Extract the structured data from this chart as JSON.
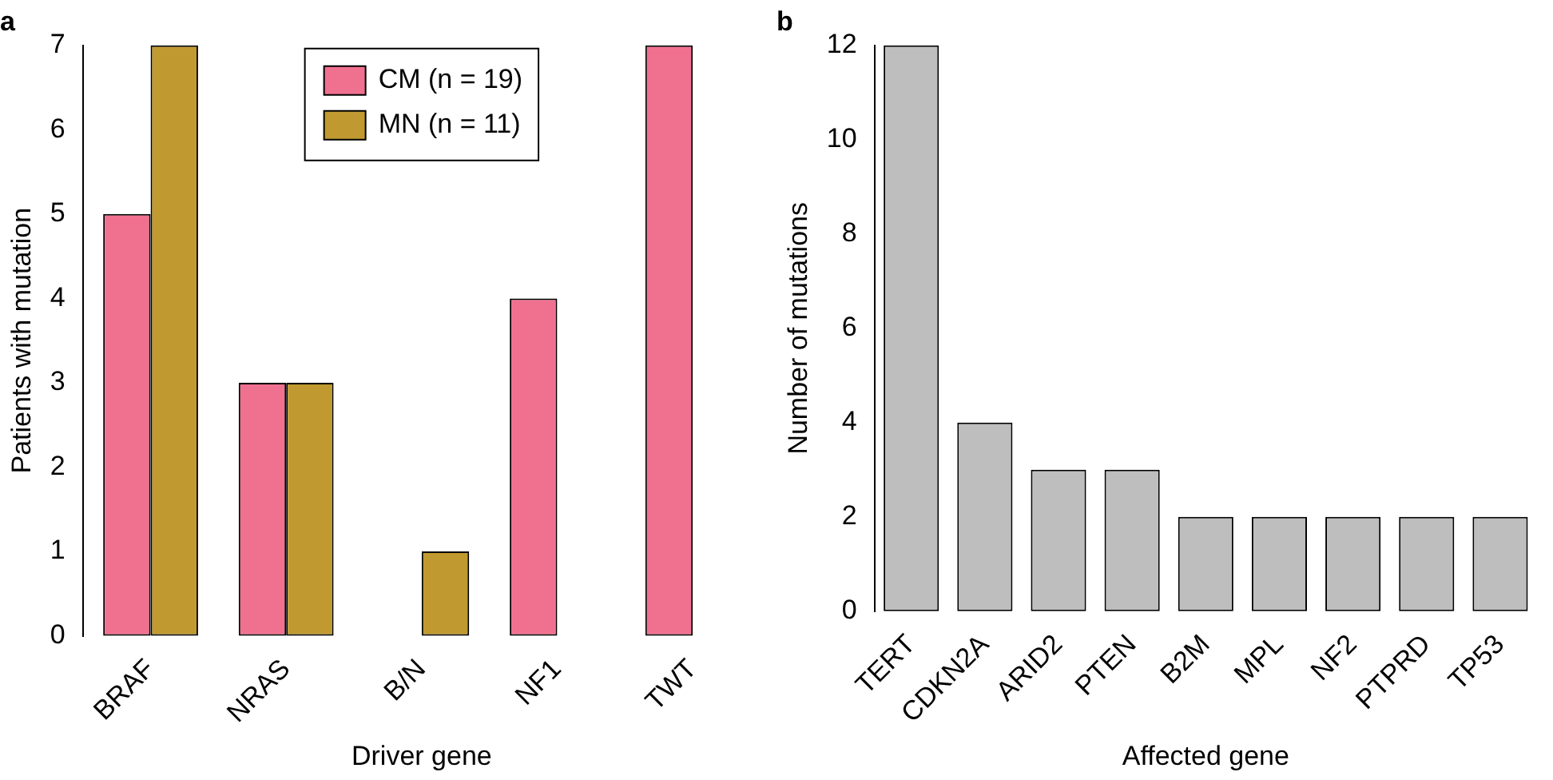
{
  "chart_data": [
    {
      "type": "bar",
      "title": "a",
      "xlabel": "Driver gene",
      "ylabel": "Patients with mutation",
      "categories": [
        "BRAF",
        "NRAS",
        "B/N",
        "NF1",
        "TWT"
      ],
      "series": [
        {
          "name": "CM (n = 19)",
          "color": "#f07090",
          "values": [
            5,
            3,
            0,
            4,
            7
          ]
        },
        {
          "name": "MN (n = 11)",
          "color": "#c09a30",
          "values": [
            7,
            3,
            1,
            0,
            0
          ]
        }
      ],
      "ylim": [
        0,
        7
      ],
      "yticks": [
        0,
        1,
        2,
        3,
        4,
        5,
        6,
        7
      ],
      "grid": false,
      "legend": "top"
    },
    {
      "type": "bar",
      "title": "b",
      "xlabel": "Affected gene",
      "ylabel": "Number of mutations",
      "categories": [
        "TERT",
        "CDKN2A",
        "ARID2",
        "PTEN",
        "B2M",
        "MPL",
        "NF2",
        "PTPRD",
        "TP53"
      ],
      "values": [
        12,
        4,
        3,
        3,
        2,
        2,
        2,
        2,
        2
      ],
      "color": "#bebebe",
      "ylim": [
        0,
        12
      ],
      "yticks": [
        0,
        2,
        4,
        6,
        8,
        10,
        12
      ],
      "grid": false,
      "legend": false
    }
  ]
}
